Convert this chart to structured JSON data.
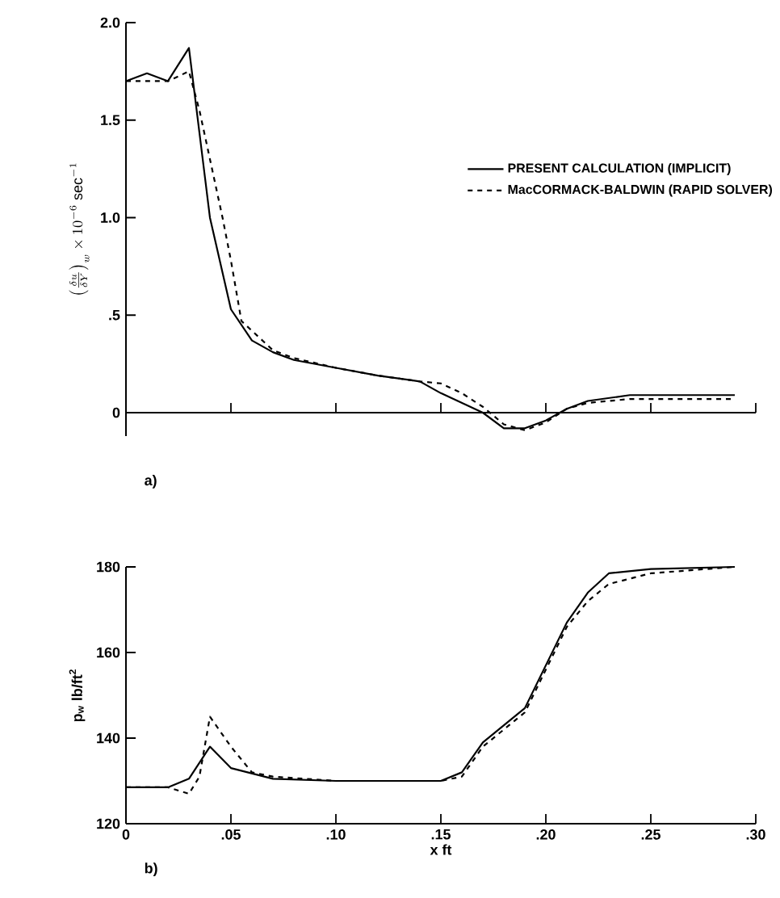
{
  "chart_data": [
    {
      "type": "line",
      "ylabel": "\\left(\\frac{\\delta u}{\\delta Y}\\right)_{w} \\times 10^{-6}\\ \\mathrm{sec}^{-1}",
      "xlim": [
        0,
        0.3
      ],
      "xticks": [
        {
          "value": 0.05,
          "label": null
        },
        {
          "value": 0.1,
          "label": null
        },
        {
          "value": 0.15,
          "label": null
        },
        {
          "value": 0.2,
          "label": null
        },
        {
          "value": 0.25,
          "label": null
        },
        {
          "value": 0.3,
          "label": null
        }
      ],
      "tick_labels": "y",
      "ylim": [
        -0.12,
        2.0
      ],
      "yticks": [
        0,
        {
          "value": 0.5,
          "label": ".5"
        },
        {
          "value": 1.0,
          "label": "1.0"
        },
        {
          "value": 1.5,
          "label": "1.5"
        },
        {
          "value": 2.0,
          "label": "2.0"
        }
      ],
      "legend": "right",
      "annotations": [
        "a)"
      ],
      "series": [
        {
          "name": "PRESENT CALCULATION (IMPLICIT)",
          "color": "#000000",
          "line_style": "solid",
          "x": [
            0,
            0.01,
            0.02,
            0.03,
            0.04,
            0.05,
            0.06,
            0.07,
            0.08,
            0.1,
            0.12,
            0.14,
            0.15,
            0.17,
            0.18,
            0.19,
            0.2,
            0.21,
            0.22,
            0.24,
            0.29
          ],
          "values": [
            1.7,
            1.74,
            1.7,
            1.87,
            1.0,
            0.53,
            0.37,
            0.31,
            0.27,
            0.23,
            0.19,
            0.16,
            0.1,
            0.0,
            -0.08,
            -0.08,
            -0.04,
            0.02,
            0.06,
            0.09,
            0.09
          ]
        },
        {
          "name": "MacCORMACK-BALDWIN (RAPID SOLVER)",
          "color": "#000000",
          "line_style": "dashed",
          "x": [
            0,
            0.01,
            0.02,
            0.03,
            0.035,
            0.046,
            0.05,
            0.055,
            0.06,
            0.07,
            0.08,
            0.1,
            0.12,
            0.14,
            0.15,
            0.16,
            0.17,
            0.18,
            0.19,
            0.2,
            0.21,
            0.22,
            0.24,
            0.29
          ],
          "values": [
            1.7,
            1.7,
            1.7,
            1.75,
            1.55,
            1.0,
            0.78,
            0.47,
            0.42,
            0.32,
            0.28,
            0.23,
            0.19,
            0.16,
            0.15,
            0.1,
            0.03,
            -0.06,
            -0.09,
            -0.05,
            0.02,
            0.05,
            0.07,
            0.07
          ]
        }
      ]
    },
    {
      "type": "line",
      "xlabel": "x     ft",
      "ylabel": "p$_{w}$  lb/ft$^{2}$",
      "xlim": [
        0,
        0.3
      ],
      "xticks": [
        {
          "value": 0,
          "label": "0"
        },
        {
          "value": 0.05,
          "label": ".05"
        },
        {
          "value": 0.1,
          "label": ".10"
        },
        {
          "value": 0.15,
          "label": ".15"
        },
        {
          "value": 0.2,
          "label": ".20"
        },
        {
          "value": 0.25,
          "label": ".25"
        },
        {
          "value": 0.3,
          "label": ".30"
        }
      ],
      "ylim": [
        120,
        180
      ],
      "yticks": [
        120,
        140,
        160,
        180
      ],
      "annotations": [
        "b)"
      ],
      "series": [
        {
          "color": "#000000",
          "line_style": "solid",
          "x": [
            0,
            0.02,
            0.03,
            0.04,
            0.05,
            0.07,
            0.1,
            0.15,
            0.16,
            0.17,
            0.19,
            0.2,
            0.21,
            0.22,
            0.23,
            0.25,
            0.29
          ],
          "values": [
            128.5,
            128.5,
            130.5,
            138,
            133,
            130.5,
            130,
            130,
            132,
            139,
            147,
            157,
            167,
            174,
            178.5,
            179.5,
            180
          ]
        },
        {
          "color": "#000000",
          "line_style": "dashed",
          "x": [
            0,
            0.02,
            0.03,
            0.035,
            0.04,
            0.05,
            0.06,
            0.07,
            0.1,
            0.15,
            0.16,
            0.17,
            0.19,
            0.2,
            0.21,
            0.22,
            0.23,
            0.25,
            0.29
          ],
          "values": [
            128.5,
            128.5,
            127,
            131,
            145,
            138,
            132,
            131,
            130,
            130,
            131,
            138,
            146,
            156,
            166,
            172,
            176,
            178.5,
            180
          ]
        }
      ]
    }
  ]
}
